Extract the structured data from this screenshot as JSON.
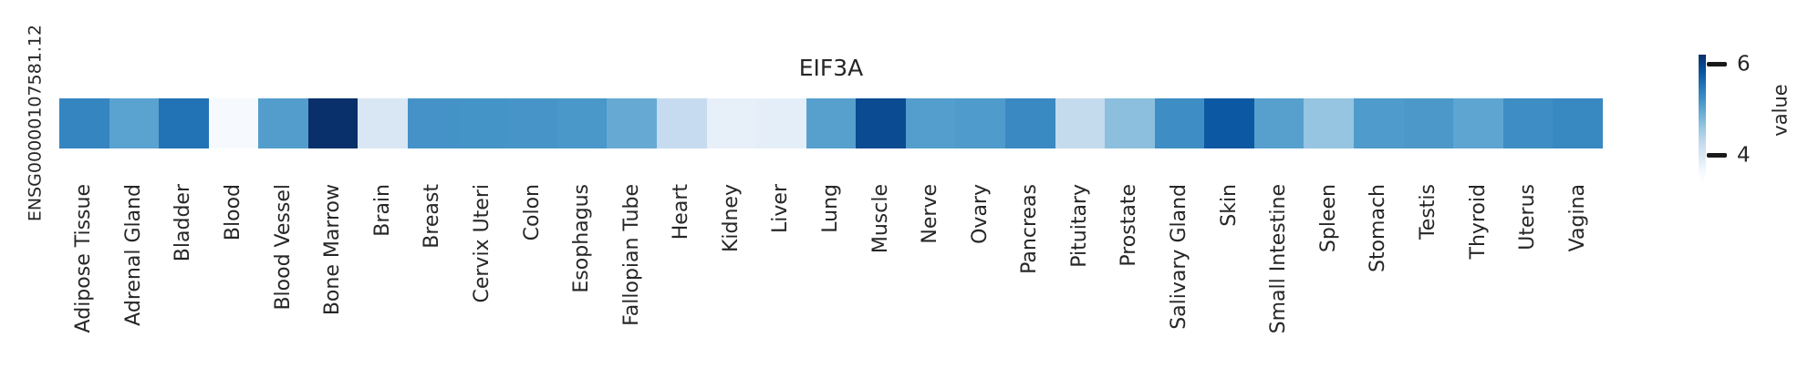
{
  "figure": {
    "title": "EIF3A",
    "row_label": "ENSG00000107581.12",
    "colorbar": {
      "label": "value",
      "tick_labels": [
        "6",
        "4"
      ]
    }
  },
  "colors": {
    "background": "#ffffff",
    "text": "#262626",
    "tick_mark": "#1a1a1a",
    "colormap_dark_end": "#08306b",
    "colormap_light_end": "#f7fbff"
  },
  "chart_data": {
    "type": "heatmap",
    "title": "EIF3A",
    "rows": [
      "ENSG00000107581.12"
    ],
    "columns": [
      "Adipose Tissue",
      "Adrenal Gland",
      "Bladder",
      "Blood",
      "Blood Vessel",
      "Bone Marrow",
      "Brain",
      "Breast",
      "Cervix Uteri",
      "Colon",
      "Esophagus",
      "Fallopian Tube",
      "Heart",
      "Kidney",
      "Liver",
      "Lung",
      "Muscle",
      "Nerve",
      "Ovary",
      "Pancreas",
      "Pituitary",
      "Prostate",
      "Salivary Gland",
      "Skin",
      "Small Intestine",
      "Spleen",
      "Stomach",
      "Testis",
      "Thyroid",
      "Uterus",
      "Vagina"
    ],
    "values": [
      [
        5.3,
        4.9,
        5.6,
        3.7,
        5.0,
        6.2,
        4.0,
        5.2,
        5.1,
        5.1,
        5.1,
        4.8,
        4.2,
        3.8,
        3.9,
        4.9,
        5.9,
        5.0,
        5.0,
        5.3,
        4.2,
        4.5,
        5.2,
        5.8,
        4.9,
        4.5,
        5.0,
        5.1,
        4.9,
        5.2,
        5.3
      ]
    ],
    "cell_colors": [
      [
        "#3585c1",
        "#5aa2d0",
        "#2272b6",
        "#f6fafe",
        "#539dcc",
        "#09306b",
        "#d9e7f4",
        "#4492c7",
        "#4594c8",
        "#4795c8",
        "#4a97c9",
        "#66aad4",
        "#c6dbef",
        "#e7f0f9",
        "#e4eef8",
        "#57a0ce",
        "#0a4b92",
        "#549ecd",
        "#4f9bcb",
        "#3a89c2",
        "#c4daed",
        "#8bbfdd",
        "#3e8dc4",
        "#0d58a2",
        "#57a0ce",
        "#95c5e1",
        "#4f9bcb",
        "#4b98c9",
        "#5ea5d1",
        "#3e8dc4",
        "#3888c1"
      ]
    ],
    "colormap": "Blues",
    "vmin": 3.6,
    "vmax": 6.2,
    "colorbar_label": "value",
    "colorbar_ticks": [
      6,
      4
    ],
    "colorbar_position": "right",
    "colorbar_extend": "min",
    "grid": false,
    "x_tick_rotation": 90
  }
}
